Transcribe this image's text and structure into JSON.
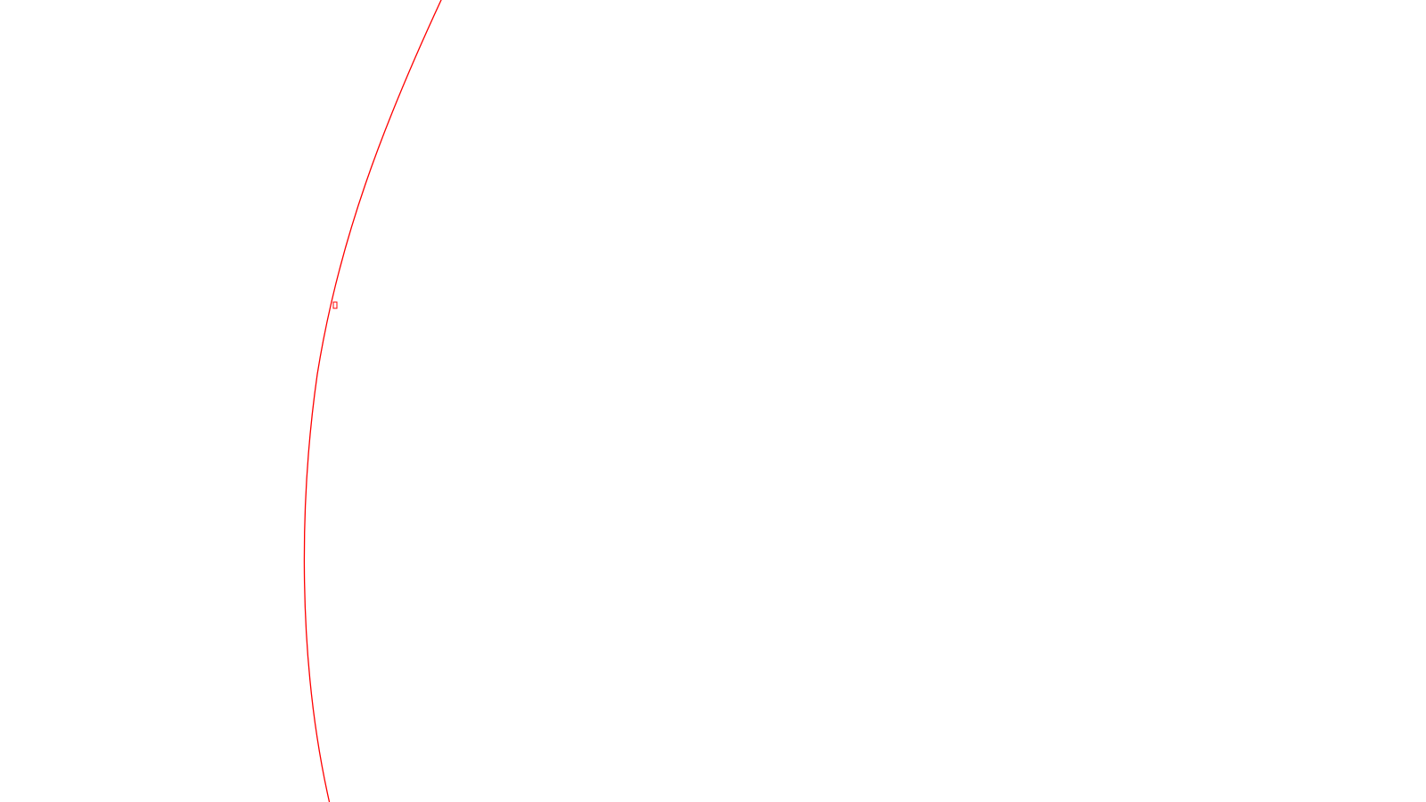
{
  "colors": {
    "background": "#ffffff",
    "curve": "#ff0000"
  },
  "curve": {
    "marker_label": ""
  }
}
